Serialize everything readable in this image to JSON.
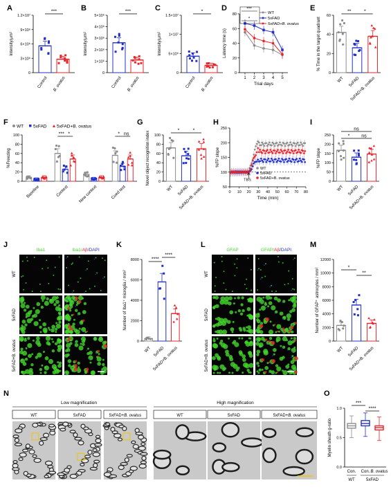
{
  "colors": {
    "wt": "#8c8c8c",
    "fad": "#2230c8",
    "ovatus": "#e8232a",
    "axis": "#000000",
    "iba1": "#44d62c",
    "grey_bg": "#000000"
  },
  "panel_labels": [
    "A",
    "B",
    "C",
    "D",
    "E",
    "F",
    "G",
    "H",
    "I",
    "J",
    "K",
    "L",
    "M",
    "N",
    "O"
  ],
  "sig": {
    "A": "***",
    "B": "***",
    "C": "*",
    "D": [
      "***",
      "*"
    ],
    "E": [
      "**",
      "*"
    ],
    "F": [
      "***",
      "*",
      "*",
      "ns"
    ],
    "G": [
      "*",
      "*"
    ],
    "I": [
      "ns",
      "*",
      "ns"
    ],
    "K": [
      "****",
      "****"
    ],
    "M": [
      "*",
      "**"
    ],
    "O": [
      "***",
      "****"
    ]
  },
  "chart_data": [
    {
      "panel": "A",
      "type": "bar",
      "categories": [
        "Control",
        "B. ovatus"
      ],
      "values": [
        5.6,
        2.8
      ],
      "ylabel": "Intensity/μm²",
      "yticks": [
        "0",
        "3×10⁶",
        "6×10⁶",
        "9×10⁶",
        "1.2×10⁷"
      ],
      "ylim": [
        0,
        12
      ],
      "unit_scale": "×10⁶"
    },
    {
      "panel": "B",
      "type": "bar",
      "categories": [
        "Control",
        "B. ovatus"
      ],
      "values": [
        2.6,
        1.1
      ],
      "ylabel": "Intensity/μm²",
      "yticks": [
        "0",
        "1×10⁶",
        "2×10⁶",
        "3×10⁶",
        "4×10⁶",
        "5×10⁶"
      ],
      "ylim": [
        0,
        5
      ]
    },
    {
      "panel": "C",
      "type": "bar",
      "categories": [
        "Control",
        "B. ovatus"
      ],
      "values": [
        4.3,
        1.9
      ],
      "ylabel": "Intensity/μm²",
      "yticks": [
        "0",
        "5×10⁶",
        "1×10⁷",
        "1.5×10⁷"
      ],
      "ylim": [
        0,
        15
      ]
    },
    {
      "panel": "D",
      "type": "line",
      "x": [
        1,
        2,
        3,
        4,
        5
      ],
      "xlabel": "Trial days",
      "ylabel": "Latency time (s)",
      "ylim": [
        0,
        80
      ],
      "yticks": [
        "0",
        "20",
        "40",
        "60",
        "80"
      ],
      "series": [
        {
          "name": "WT",
          "values": [
            55,
            37,
            33,
            31,
            24
          ]
        },
        {
          "name": "5xFAD",
          "values": [
            67,
            64,
            58,
            55,
            31
          ]
        },
        {
          "name": "5xFAD+B. ovatus",
          "values": [
            59,
            47,
            43,
            40,
            25
          ]
        }
      ]
    },
    {
      "panel": "E",
      "type": "bar",
      "categories": [
        "WT",
        "5xFAD",
        "5xFAD+B. ovatus"
      ],
      "values": [
        42,
        26,
        38
      ],
      "ylabel": "% Time  in the target quadrant",
      "ylim": [
        0,
        60
      ],
      "yticks": [
        "0",
        "20",
        "40",
        "60"
      ]
    },
    {
      "panel": "F",
      "type": "bar",
      "categories": [
        "Baseline",
        "Context",
        "New context",
        "Cued test"
      ],
      "ylabel": "%Freezing",
      "ylim": [
        0,
        100
      ],
      "yticks": [
        "0",
        "20",
        "40",
        "60",
        "80",
        "100"
      ],
      "series": [
        {
          "name": "WT",
          "values": [
            8,
            60,
            15,
            56
          ]
        },
        {
          "name": "5xFAD",
          "values": [
            4,
            26,
            5,
            32
          ]
        },
        {
          "name": "5xFAD+B. ovatus",
          "values": [
            8,
            48,
            8,
            48
          ]
        }
      ]
    },
    {
      "panel": "G",
      "type": "bar",
      "categories": [
        "WT",
        "5xFAD",
        "5xFAD+B. ovatus"
      ],
      "values": [
        72,
        55,
        70
      ],
      "ylabel": "Novel object recognition index",
      "ylim": [
        0,
        100
      ],
      "yticks": [
        "0",
        "20",
        "40",
        "60",
        "80",
        "100"
      ]
    },
    {
      "panel": "H",
      "type": "scatter",
      "xlabel": "Time (min)",
      "ylabel": "%FP slope",
      "xlim": [
        0,
        80
      ],
      "ylim": [
        50,
        250
      ],
      "xticks": [
        "0",
        "10",
        "20",
        "30",
        "40",
        "50",
        "60",
        "70",
        "80"
      ],
      "yticks": [
        "50",
        "100",
        "150",
        "200",
        "250"
      ],
      "annotation": "TBS",
      "series": [
        {
          "name": "WT",
          "level_after": 195
        },
        {
          "name": "5xFAD",
          "level_after": 140
        },
        {
          "name": "5xFAD+B. ovatus",
          "level_after": 170
        }
      ]
    },
    {
      "panel": "I",
      "type": "bar",
      "categories": [
        "WT",
        "5xFAD",
        "5xFAD+B. ovatus"
      ],
      "values": [
        167,
        130,
        147
      ],
      "ylabel": "%FP slope",
      "ylim": [
        0,
        250
      ],
      "yticks": [
        "0",
        "50",
        "100",
        "150",
        "200",
        "250"
      ]
    },
    {
      "panel": "K",
      "type": "bar",
      "categories": [
        "WT",
        "5xFAD",
        "5xFAD+B. ovatus"
      ],
      "values": [
        250,
        5800,
        2700
      ],
      "ylabel": "Number of Iba1⁺ microglia / mm²",
      "ylim": [
        0,
        8000
      ],
      "yticks": [
        "0",
        "2000",
        "4000",
        "6000",
        "8000"
      ]
    },
    {
      "panel": "M",
      "type": "bar",
      "categories": [
        "WT",
        "5xFAD",
        "5xFAD+B. ovatus"
      ],
      "values": [
        2300,
        5300,
        2600
      ],
      "ylabel": "Number of GFAP⁺ astrocytes / mm²",
      "ylim": [
        0,
        12000
      ],
      "yticks": [
        "0",
        "2000",
        "4000",
        "6000",
        "8000",
        "10000",
        "12000"
      ]
    },
    {
      "panel": "O",
      "type": "box",
      "categories": [
        "Con.",
        "Con.",
        "B. ovatus"
      ],
      "groups": [
        "WT",
        "5xFAD"
      ],
      "ylabel": "Myelin sheath g-ratio",
      "ylim": [
        0,
        1.0
      ],
      "yticks": [
        "0.0",
        "0.5",
        "1.0"
      ],
      "boxes": [
        {
          "q1": 0.66,
          "median": 0.7,
          "q3": 0.74,
          "min": 0.5,
          "max": 0.87
        },
        {
          "q1": 0.7,
          "median": 0.74,
          "q3": 0.79,
          "min": 0.52,
          "max": 0.92
        },
        {
          "q1": 0.63,
          "median": 0.67,
          "q3": 0.7,
          "min": 0.45,
          "max": 0.85
        }
      ]
    }
  ],
  "legend": {
    "wt": "WT",
    "fad": "5xFAD",
    "ovatus": "5xFAD+B. ovatus"
  },
  "micro_J": {
    "col1": "Iba1",
    "col2a": "Iba1/",
    "col2b": "Aβ",
    "col2c": "/DAPI",
    "rows": [
      "WT",
      "5xFAD",
      "5xFAD+B. ovatus"
    ]
  },
  "micro_L": {
    "col1": "GFAP",
    "col2a": "GFAP/",
    "col2b": "Aβ",
    "col2c": "/DAPI",
    "rows": [
      "WT",
      "5xFAD",
      "5xFAD+B. ovatus"
    ]
  },
  "em_N": {
    "low": "Low magnification",
    "high": "High magnification",
    "labels": [
      "WT",
      "5xFAD",
      "5xFAD+B. ovatus",
      "WT",
      "5xFAD",
      "5xFAD+B. ovatus"
    ]
  }
}
